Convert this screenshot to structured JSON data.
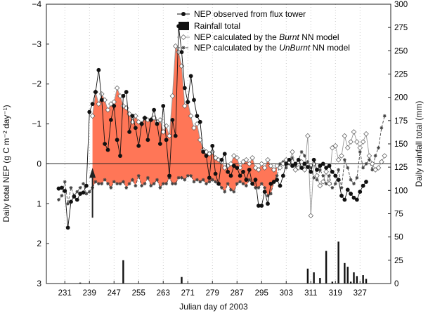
{
  "chart_data": {
    "type": "line",
    "xlabel": "Julian day of 2003",
    "ylabel_left": "Daily total NEP (g C m⁻² day⁻¹)",
    "ylabel_right": "Daily rainfall total (mm)",
    "xlim": [
      225,
      337
    ],
    "ylim_left": [
      3,
      -4
    ],
    "ylim_right": [
      0,
      300
    ],
    "x_ticks": [
      231,
      239,
      247,
      255,
      263,
      271,
      279,
      287,
      295,
      303,
      311,
      319,
      327
    ],
    "y_ticks_left": [
      -4,
      -3,
      -2,
      -1,
      0,
      1,
      2,
      3
    ],
    "y_ticks_right": [
      0,
      25,
      50,
      75,
      100,
      125,
      150,
      175,
      200,
      225,
      250,
      275,
      300
    ],
    "grid": "x-dotted",
    "legend_position": "top-center",
    "legend": [
      {
        "prefix": "NEP observed from flux tower",
        "em": "",
        "suffix": ""
      },
      {
        "prefix": "Rainfall total",
        "em": "",
        "suffix": ""
      },
      {
        "prefix": "NEP calculated by the ",
        "em": "Burnt",
        "suffix": " NN model"
      },
      {
        "prefix": "NEP calculated by the ",
        "em": "UnBurnt",
        "suffix": " NN model"
      }
    ],
    "colors": {
      "observed": "#111111",
      "burnt": "#999999",
      "unburnt": "#444444",
      "fill": "#ff7657",
      "rain": "#111111",
      "axis": "#222222"
    },
    "annotations": [
      "fire event arrow at day 240"
    ],
    "series": [
      {
        "name": "NEP observed from flux tower",
        "x": [
          229,
          230,
          231,
          232,
          233,
          234,
          235,
          236,
          237,
          238,
          239,
          240,
          241,
          242,
          243,
          244,
          245,
          246,
          247,
          248,
          249,
          250,
          251,
          252,
          253,
          254,
          255,
          256,
          257,
          258,
          259,
          260,
          261,
          262,
          263,
          264,
          265,
          266,
          267,
          268,
          269,
          270,
          271,
          272,
          273,
          274,
          275,
          276,
          277,
          278,
          279,
          280,
          281,
          282,
          283,
          284,
          285,
          286,
          287,
          288,
          289,
          290,
          291,
          292,
          293,
          294,
          295,
          296,
          297,
          298,
          299,
          300,
          301,
          302,
          303,
          304,
          305,
          306,
          307,
          308,
          309,
          310,
          311,
          312,
          313,
          314,
          315,
          316,
          317,
          318,
          319,
          320,
          321,
          322,
          323,
          324,
          325,
          326,
          327,
          328,
          329
        ],
        "y": [
          0.62,
          0.6,
          0.68,
          1.6,
          0.95,
          0.82,
          0.9,
          0.75,
          0.72,
          0.55,
          -1.3,
          -1.5,
          -1.8,
          -2.35,
          -1.6,
          -0.5,
          -0.35,
          -1.1,
          -1.45,
          -0.6,
          -0.2,
          -1.7,
          -1.8,
          -0.8,
          -1.2,
          -0.9,
          -0.45,
          -1.0,
          -1.15,
          -0.6,
          -1.1,
          -1.35,
          -1.0,
          -0.5,
          -1.45,
          -0.6,
          0.3,
          -1.1,
          -0.7,
          -3.45,
          -2.8,
          -1.9,
          -1.55,
          -2.2,
          -1.6,
          -1.2,
          -1.05,
          -0.3,
          -0.2,
          0.35,
          -0.45,
          0.25,
          0.5,
          -0.1,
          -0.25,
          0.2,
          0.3,
          0.05,
          0.1,
          0.3,
          0.2,
          0.4,
          0.15,
          0.5,
          0.4,
          1.05,
          1.05,
          0.7,
          1.0,
          0.5,
          0.45,
          0.4,
          0.55,
          0.3,
          0.0,
          -0.1,
          0.05,
          0.0,
          -0.1,
          0.1,
          0.0,
          0.08,
          0.2,
          -0.1,
          0.15,
          0.05,
          0.0,
          0.1,
          0.05,
          0.2,
          0.3,
          0.4,
          0.8,
          0.9,
          0.65,
          0.75,
          0.85,
          0.9,
          0.7,
          0.55,
          0.45
        ]
      },
      {
        "name": "NEP calculated by the Burnt NN model",
        "x": [
          240,
          241,
          242,
          243,
          244,
          245,
          246,
          247,
          248,
          249,
          250,
          251,
          252,
          253,
          254,
          255,
          256,
          257,
          258,
          259,
          260,
          261,
          262,
          263,
          264,
          265,
          266,
          267,
          268,
          269,
          270,
          271,
          272,
          273,
          274,
          275,
          276,
          277,
          278,
          279,
          280,
          281,
          282,
          283,
          284,
          285,
          286,
          287,
          288,
          289,
          290,
          291,
          292,
          293,
          294,
          295,
          296,
          297,
          298,
          299,
          300,
          301,
          302,
          303,
          304,
          305,
          306,
          307,
          308,
          309,
          310,
          311,
          312,
          313,
          314,
          315,
          316,
          317,
          318,
          319,
          320,
          321,
          322,
          323,
          324,
          325,
          326,
          327,
          328,
          329,
          330,
          331,
          332,
          333,
          334,
          335
        ],
        "y": [
          -1.2,
          -1.8,
          -1.5,
          -1.75,
          -1.6,
          -1.35,
          -1.5,
          -1.55,
          -1.9,
          -1.7,
          -1.45,
          -1.4,
          -1.25,
          -1.05,
          -1.2,
          -1.05,
          -1.0,
          -1.15,
          -1.1,
          -1.1,
          -1.15,
          -1.05,
          -1.1,
          -0.8,
          -0.95,
          -0.7,
          -1.7,
          -2.95,
          -2.8,
          -2.45,
          -1.45,
          -1.55,
          -1.2,
          -0.9,
          -1.0,
          -0.6,
          -0.35,
          -0.3,
          -0.25,
          -0.3,
          -0.15,
          -0.1,
          -0.05,
          0.1,
          0.05,
          0.0,
          -0.2,
          -0.15,
          0.1,
          -0.05,
          -0.1,
          0.0,
          -0.15,
          0.1,
          0.15,
          0.0,
          0.1,
          -0.1,
          0.05,
          0.15,
          0.05,
          0.1,
          0.0,
          -0.1,
          -0.05,
          -0.3,
          0.15,
          0.1,
          -0.05,
          0.15,
          -0.7,
          1.3,
          0.0,
          0.3,
          0.55,
          0.45,
          0.2,
          0.5,
          -0.4,
          -0.45,
          -0.1,
          -0.2,
          -0.7,
          -0.4,
          -0.55,
          -0.8,
          -0.55,
          -0.4,
          -0.55,
          -0.75,
          -0.2,
          0.0,
          0.15,
          0.1,
          -0.05,
          -0.2
        ]
      },
      {
        "name": "NEP calculated by the UnBurnt NN model",
        "x": [
          229,
          230,
          231,
          232,
          233,
          234,
          235,
          236,
          237,
          238,
          239,
          240,
          241,
          242,
          243,
          244,
          245,
          246,
          247,
          248,
          249,
          250,
          251,
          252,
          253,
          254,
          255,
          256,
          257,
          258,
          259,
          260,
          261,
          262,
          263,
          264,
          265,
          266,
          267,
          268,
          269,
          270,
          271,
          272,
          273,
          274,
          275,
          276,
          277,
          278,
          279,
          280,
          281,
          282,
          283,
          284,
          285,
          286,
          287,
          288,
          289,
          290,
          291,
          292,
          293,
          294,
          295,
          296,
          297,
          298,
          299,
          300,
          301,
          302,
          303,
          304,
          305,
          306,
          307,
          308,
          309,
          310,
          311,
          312,
          313,
          314,
          315,
          316,
          317,
          318,
          319,
          320,
          321,
          322,
          323,
          324,
          325,
          326,
          327,
          328,
          329,
          330,
          331,
          332,
          333,
          334,
          335
        ],
        "y": [
          0.9,
          0.8,
          0.45,
          1.0,
          0.6,
          0.8,
          0.7,
          0.6,
          0.5,
          0.75,
          0.7,
          0.6,
          0.45,
          0.5,
          0.5,
          0.4,
          0.5,
          0.6,
          0.45,
          0.5,
          0.5,
          0.45,
          0.6,
          0.5,
          0.4,
          0.55,
          0.3,
          0.55,
          0.5,
          0.35,
          0.55,
          0.5,
          0.4,
          0.6,
          0.5,
          0.5,
          0.35,
          0.5,
          0.5,
          0.35,
          0.35,
          0.4,
          0.3,
          0.3,
          0.45,
          0.4,
          0.45,
          0.4,
          0.5,
          0.45,
          0.4,
          0.45,
          0.5,
          0.6,
          0.7,
          0.5,
          0.65,
          0.7,
          0.5,
          0.45,
          0.5,
          0.55,
          0.4,
          0.5,
          0.6,
          0.6,
          0.5,
          0.6,
          0.8,
          0.75,
          0.45,
          0.3,
          0.0,
          -0.05,
          0.1,
          0.0,
          -0.15,
          0.05,
          -0.1,
          -0.3,
          -0.2,
          -0.05,
          0.1,
          0.35,
          0.4,
          0.15,
          0.3,
          0.5,
          0.3,
          0.6,
          0.5,
          0.15,
          0.6,
          -0.1,
          0.1,
          0.4,
          0.5,
          0.35,
          -0.3,
          0.1,
          0.0,
          -0.1,
          0.15,
          -0.2,
          -0.4,
          -0.9,
          -1.2
        ]
      }
    ],
    "rainfall": {
      "name": "Rainfall total",
      "x": [
        236,
        250,
        269,
        310,
        312,
        314,
        316,
        318,
        320,
        322,
        323,
        324,
        325,
        326,
        328,
        329
      ],
      "values": [
        1,
        25,
        7,
        16,
        12,
        6,
        35,
        2,
        45,
        22,
        18,
        2,
        12,
        8,
        9,
        5
      ]
    },
    "fill_between": {
      "series": [
        "NEP calculated by the Burnt NN model",
        "NEP calculated by the UnBurnt NN model"
      ],
      "x_range": [
        240,
        300
      ]
    }
  }
}
